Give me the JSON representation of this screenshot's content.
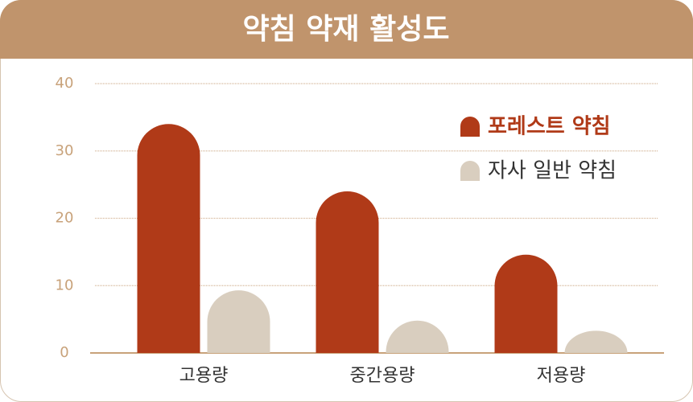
{
  "chart_data": {
    "type": "bar",
    "title": "약침 약재 활성도",
    "categories": [
      "고용량",
      "중간용량",
      "저용량"
    ],
    "series": [
      {
        "name": "포레스트 약침",
        "color": "#b03a18",
        "values": [
          34,
          24,
          14.6
        ]
      },
      {
        "name": "자사 일반 약침",
        "color": "#d9cebf",
        "values": [
          9.3,
          4.8,
          3.3
        ]
      }
    ],
    "ylim": [
      0,
      40
    ],
    "yticks": [
      0,
      10,
      20,
      30,
      40
    ],
    "grid": true,
    "legend": "upper right"
  }
}
